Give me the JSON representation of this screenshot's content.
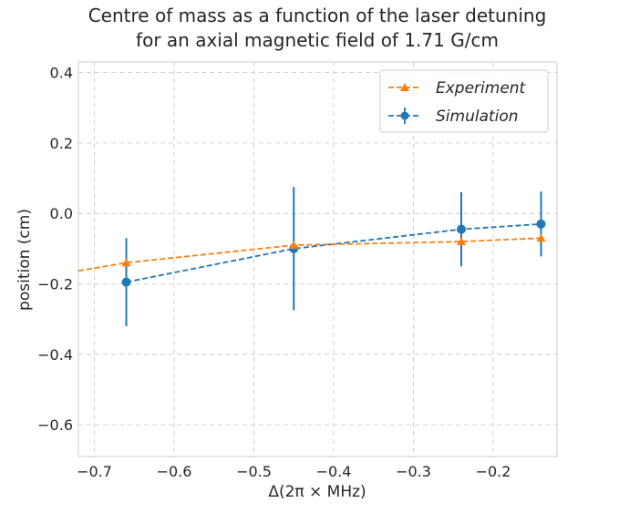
{
  "chart_data": {
    "type": "line",
    "title": [
      "Centre of mass as a function of the laser detuning",
      "for an axial magnetic field of 1.71 G/cm"
    ],
    "xlabel": "Δ(2π × MHz)",
    "ylabel": "position (cm)",
    "xlim": [
      -0.72,
      -0.12
    ],
    "ylim": [
      -0.69,
      0.43
    ],
    "xticks": [
      -0.7,
      -0.6,
      -0.5,
      -0.4,
      -0.3,
      -0.2
    ],
    "xtick_labels": [
      "−0.7",
      "−0.6",
      "−0.5",
      "−0.4",
      "−0.3",
      "−0.2"
    ],
    "yticks": [
      0.4,
      0.2,
      0.0,
      -0.2,
      -0.4,
      -0.6
    ],
    "ytick_labels": [
      "0.4",
      "0.2",
      "0.0",
      "−0.2",
      "−0.4",
      "−0.6"
    ],
    "grid": true,
    "legend_position": "top-right",
    "series": [
      {
        "name": "Experiment",
        "color": "#ff7f0e",
        "marker": "triangle",
        "line_style": "dashed",
        "x": [
          -0.72,
          -0.66,
          -0.45,
          -0.24,
          -0.14
        ],
        "y": [
          -0.163,
          -0.14,
          -0.09,
          -0.08,
          -0.07
        ]
      },
      {
        "name": "Simulation",
        "color": "#1f77b4",
        "marker": "circle",
        "line_style": "dashed",
        "x": [
          -0.66,
          -0.45,
          -0.24,
          -0.14
        ],
        "y": [
          -0.195,
          -0.1,
          -0.045,
          -0.03
        ],
        "yerr": [
          0.125,
          0.175,
          0.105,
          0.092
        ]
      }
    ]
  }
}
